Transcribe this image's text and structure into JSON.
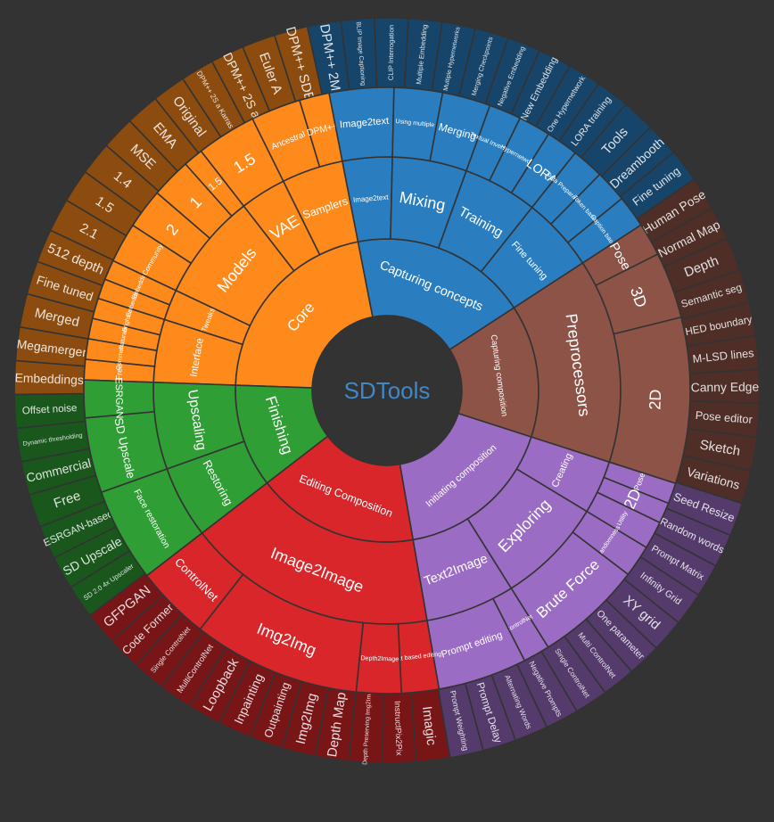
{
  "chart_data": {
    "type": "sunburst",
    "center_label": "SDTools",
    "colors": {
      "background": "#333333",
      "Core": "#ff8a1c",
      "Capturing concepts": "#2a7dbf",
      "Capturing composition": "#8e5347",
      "Initiating composition": "#9b6cc4",
      "Editing Composition": "#d8262a",
      "Finishing": "#2f9e35"
    },
    "tree": [
      {
        "name": "Core",
        "value": 13.6,
        "children": [
          {
            "name": "Interface",
            "value": 4.1,
            "children": [
              {
                "name": "Free",
                "value": 1
              },
              {
                "name": "Commercial",
                "value": 1
              },
              {
                "name": "Saturation",
                "value": 1
              },
              {
                "name": "Brightness",
                "value": 1
              }
            ]
          },
          {
            "name": "Tweaks",
            "value": 2,
            "children": [
              {
                "name": "Embeddings",
                "value": 1
              },
              {
                "name": "Embeddings",
                "value": 1
              }
            ]
          },
          {
            "name": "Models",
            "value": 7,
            "children": [
              {
                "name": "Community",
                "value": 2
              },
              {
                "name": "2",
                "value": 2
              },
              {
                "name": "1",
                "value": 2
              },
              {
                "name": "1.5",
                "value": 1
              }
            ]
          },
          {
            "name": "VAE",
            "value": 3,
            "children": [
              {
                "name": "1.5",
                "value": 3
              }
            ]
          },
          {
            "name": "Samplers",
            "value": 4,
            "children": [
              {
                "name": "Ancestral",
                "value": 2.5
              },
              {
                "name": "DPM++",
                "value": 1.5
              }
            ]
          }
        ]
      },
      {
        "name": "Capturing concepts",
        "value": 12,
        "children": [
          {
            "name": "Image2text",
            "value": 2,
            "children": [
              {
                "name": "Image2text",
                "value": 2
              }
            ]
          },
          {
            "name": "Mixing",
            "value": 3,
            "children": [
              {
                "name": "Using multiple",
                "value": 2
              },
              {
                "name": "Merging",
                "value": 2
              }
            ]
          },
          {
            "name": "Training",
            "value": 3,
            "children": [
              {
                "name": "Textual Inversion",
                "value": 1
              },
              {
                "name": "Hypernetwork",
                "value": 1
              },
              {
                "name": "LORA",
                "value": 1
              }
            ]
          },
          {
            "name": "Fine tuning",
            "value": 3,
            "children": [
              {
                "name": "Data Preparation",
                "value": 1
              },
              {
                "name": "Token based",
                "value": 1
              },
              {
                "name": "Caption based",
                "value": 1
              }
            ]
          }
        ]
      },
      {
        "name": "Capturing composition",
        "value": 9,
        "children": [
          {
            "name": "Preprocessors",
            "value": 9,
            "children": [
              {
                "name": "Pose",
                "value": 1
              },
              {
                "name": "3D",
                "value": 2
              },
              {
                "name": "2D",
                "value": 5
              }
            ]
          }
        ]
      },
      {
        "name": "Initiating composition",
        "value": 11,
        "children": [
          {
            "name": "Creating",
            "value": 3,
            "children": [
              {
                "name": "Pose",
                "value": 1.2
              },
              {
                "name": "2D",
                "value": 1.2
              },
              {
                "name": "Utility",
                "value": 1.6
              }
            ]
          },
          {
            "name": "Exploring",
            "value": 6,
            "children": [
              {
                "name": "Randomness",
                "value": 1.2
              },
              {
                "name": "Brute Force",
                "value": 4
              }
            ]
          },
          {
            "name": "Text2Image",
            "value": 5,
            "children": [
              {
                "name": "ControlNet",
                "value": 1.2
              },
              {
                "name": "Prompt editing",
                "value": 4
              }
            ]
          }
        ]
      },
      {
        "name": "Editing Composition",
        "value": 11,
        "children": [
          {
            "name": "Image2Image",
            "value": 11,
            "children": [
              {
                "name": "Text based editing",
                "value": 1
              },
              {
                "name": "Depth2Image",
                "value": 1.2
              },
              {
                "name": "Img2Img",
                "value": 4.5
              },
              {
                "name": "ControlNet",
                "value": 2
              }
            ]
          }
        ]
      },
      {
        "name": "Finishing",
        "value": 7,
        "children": [
          {
            "name": "Restoring",
            "value": 2.5,
            "children": [
              {
                "name": "Face restoration",
                "value": 2.5
              }
            ]
          },
          {
            "name": "Upscaling",
            "value": 3,
            "children": [
              {
                "name": "SD Upscale",
                "value": 2
              },
              {
                "name": "ESRGAN",
                "value": 1
              }
            ]
          }
        ]
      }
    ],
    "outer_ring_labels": [
      "Free",
      "Commercial",
      "Dynamic thresholding",
      "Offset noise",
      "Embeddings",
      "Megamerger",
      "Merged",
      "Fine tuned",
      "512 depth",
      "2.1",
      "1.5",
      "1.4",
      "MSE",
      "EMA",
      "Original",
      "DPM++ 2S a Karras",
      "DPM++ 2S a",
      "Euler A",
      "DPM++ SDE",
      "DPM++ 2M",
      "BLIP Image Captioning",
      "CLIP Interrogation",
      "Multiple Embedding",
      "Multiple Hypernetworks",
      "Merging Checkpoints",
      "Negative Embedding",
      "New Embedding",
      "One Hypernetwork",
      "LORA training",
      "Tools",
      "Dreambooth",
      "Fine tuning",
      "Human Pose",
      "Normal Map",
      "Depth",
      "Semantic seg",
      "HED boundary",
      "M-LSD lines",
      "Canny Edge",
      "Pose editor",
      "Sketch",
      "Variations",
      "Seed Resize",
      "Random words",
      "Prompt Matrix",
      "Infinity Grid",
      "XY grid",
      "One parameter",
      "Multi ControlNet",
      "Single ControlNet",
      "Negative Prompts",
      "Alternating Words",
      "Prompt Delay",
      "Prompt Weighting",
      "Imagic",
      "InstructPix2Pix",
      "Depth Preserving Img2Img",
      "Depth Map",
      "Img2Img",
      "Outpainting",
      "Inpainting",
      "Loopback",
      "MultiControlNet",
      "Single ControlNet",
      "Code Former",
      "GFPGAN",
      "SD 2.0 4x Upscaler",
      "SD Upscale",
      "ESRGAN-based"
    ]
  }
}
